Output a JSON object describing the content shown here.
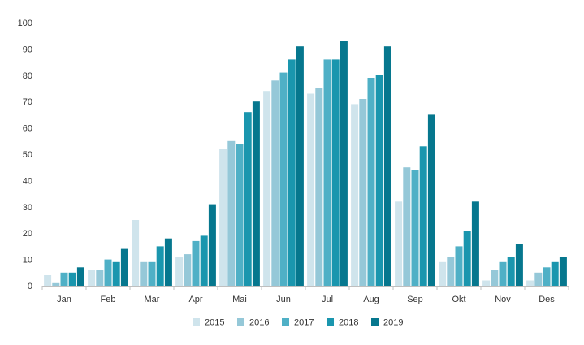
{
  "chart_data": {
    "type": "bar",
    "categories": [
      "Jan",
      "Feb",
      "Mar",
      "Apr",
      "Mai",
      "Jun",
      "Jul",
      "Aug",
      "Sep",
      "Okt",
      "Nov",
      "Des"
    ],
    "series": [
      {
        "name": "2015",
        "color": "#cfe4ec",
        "values": [
          4,
          6,
          25,
          11,
          52,
          74,
          73,
          69,
          32,
          9,
          2,
          2
        ]
      },
      {
        "name": "2016",
        "color": "#95c8d8",
        "values": [
          1,
          6,
          9,
          12,
          55,
          78,
          75,
          71,
          45,
          11,
          6,
          5
        ]
      },
      {
        "name": "2017",
        "color": "#4fb0c6",
        "values": [
          5,
          10,
          9,
          17,
          54,
          81,
          86,
          79,
          44,
          15,
          9,
          7
        ]
      },
      {
        "name": "2018",
        "color": "#1a96ae",
        "values": [
          5,
          9,
          15,
          19,
          66,
          86,
          86,
          80,
          53,
          21,
          11,
          9
        ]
      },
      {
        "name": "2019",
        "color": "#06778e",
        "values": [
          7,
          14,
          18,
          31,
          70,
          91,
          93,
          91,
          65,
          32,
          16,
          11
        ]
      }
    ],
    "title": "",
    "xlabel": "",
    "ylabel": "",
    "ylim": [
      0,
      100
    ],
    "yticks": [
      0,
      10,
      20,
      30,
      40,
      50,
      60,
      70,
      80,
      90,
      100
    ],
    "grid": false,
    "legend_position": "bottom"
  }
}
